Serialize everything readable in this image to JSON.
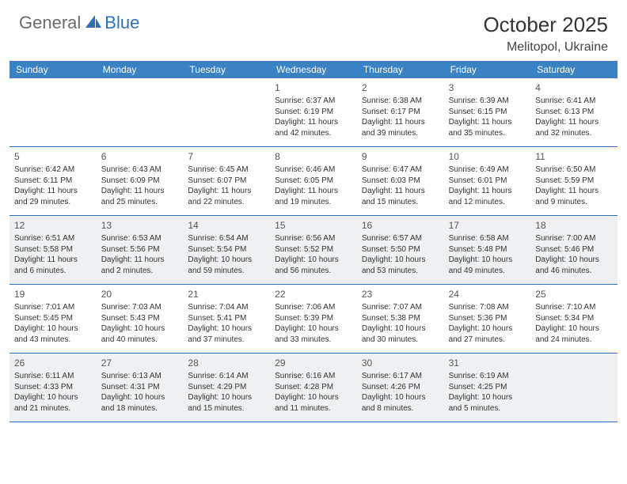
{
  "logo": {
    "general": "General",
    "blue": "Blue"
  },
  "title": "October 2025",
  "location": "Melitopol, Ukraine",
  "colors": {
    "header_bg": "#3b82c4",
    "border": "#2d6fb8",
    "shaded": "#eef0f2",
    "logo_gray": "#6b6b6b",
    "logo_blue": "#2d6fb8"
  },
  "day_names": [
    "Sunday",
    "Monday",
    "Tuesday",
    "Wednesday",
    "Thursday",
    "Friday",
    "Saturday"
  ],
  "weeks": [
    {
      "shaded": false,
      "days": [
        {
          "num": "",
          "sunrise": "",
          "sunset": "",
          "daylight": ""
        },
        {
          "num": "",
          "sunrise": "",
          "sunset": "",
          "daylight": ""
        },
        {
          "num": "",
          "sunrise": "",
          "sunset": "",
          "daylight": ""
        },
        {
          "num": "1",
          "sunrise": "Sunrise: 6:37 AM",
          "sunset": "Sunset: 6:19 PM",
          "daylight": "Daylight: 11 hours and 42 minutes."
        },
        {
          "num": "2",
          "sunrise": "Sunrise: 6:38 AM",
          "sunset": "Sunset: 6:17 PM",
          "daylight": "Daylight: 11 hours and 39 minutes."
        },
        {
          "num": "3",
          "sunrise": "Sunrise: 6:39 AM",
          "sunset": "Sunset: 6:15 PM",
          "daylight": "Daylight: 11 hours and 35 minutes."
        },
        {
          "num": "4",
          "sunrise": "Sunrise: 6:41 AM",
          "sunset": "Sunset: 6:13 PM",
          "daylight": "Daylight: 11 hours and 32 minutes."
        }
      ]
    },
    {
      "shaded": false,
      "days": [
        {
          "num": "5",
          "sunrise": "Sunrise: 6:42 AM",
          "sunset": "Sunset: 6:11 PM",
          "daylight": "Daylight: 11 hours and 29 minutes."
        },
        {
          "num": "6",
          "sunrise": "Sunrise: 6:43 AM",
          "sunset": "Sunset: 6:09 PM",
          "daylight": "Daylight: 11 hours and 25 minutes."
        },
        {
          "num": "7",
          "sunrise": "Sunrise: 6:45 AM",
          "sunset": "Sunset: 6:07 PM",
          "daylight": "Daylight: 11 hours and 22 minutes."
        },
        {
          "num": "8",
          "sunrise": "Sunrise: 6:46 AM",
          "sunset": "Sunset: 6:05 PM",
          "daylight": "Daylight: 11 hours and 19 minutes."
        },
        {
          "num": "9",
          "sunrise": "Sunrise: 6:47 AM",
          "sunset": "Sunset: 6:03 PM",
          "daylight": "Daylight: 11 hours and 15 minutes."
        },
        {
          "num": "10",
          "sunrise": "Sunrise: 6:49 AM",
          "sunset": "Sunset: 6:01 PM",
          "daylight": "Daylight: 11 hours and 12 minutes."
        },
        {
          "num": "11",
          "sunrise": "Sunrise: 6:50 AM",
          "sunset": "Sunset: 5:59 PM",
          "daylight": "Daylight: 11 hours and 9 minutes."
        }
      ]
    },
    {
      "shaded": true,
      "days": [
        {
          "num": "12",
          "sunrise": "Sunrise: 6:51 AM",
          "sunset": "Sunset: 5:58 PM",
          "daylight": "Daylight: 11 hours and 6 minutes."
        },
        {
          "num": "13",
          "sunrise": "Sunrise: 6:53 AM",
          "sunset": "Sunset: 5:56 PM",
          "daylight": "Daylight: 11 hours and 2 minutes."
        },
        {
          "num": "14",
          "sunrise": "Sunrise: 6:54 AM",
          "sunset": "Sunset: 5:54 PM",
          "daylight": "Daylight: 10 hours and 59 minutes."
        },
        {
          "num": "15",
          "sunrise": "Sunrise: 6:56 AM",
          "sunset": "Sunset: 5:52 PM",
          "daylight": "Daylight: 10 hours and 56 minutes."
        },
        {
          "num": "16",
          "sunrise": "Sunrise: 6:57 AM",
          "sunset": "Sunset: 5:50 PM",
          "daylight": "Daylight: 10 hours and 53 minutes."
        },
        {
          "num": "17",
          "sunrise": "Sunrise: 6:58 AM",
          "sunset": "Sunset: 5:48 PM",
          "daylight": "Daylight: 10 hours and 49 minutes."
        },
        {
          "num": "18",
          "sunrise": "Sunrise: 7:00 AM",
          "sunset": "Sunset: 5:46 PM",
          "daylight": "Daylight: 10 hours and 46 minutes."
        }
      ]
    },
    {
      "shaded": false,
      "days": [
        {
          "num": "19",
          "sunrise": "Sunrise: 7:01 AM",
          "sunset": "Sunset: 5:45 PM",
          "daylight": "Daylight: 10 hours and 43 minutes."
        },
        {
          "num": "20",
          "sunrise": "Sunrise: 7:03 AM",
          "sunset": "Sunset: 5:43 PM",
          "daylight": "Daylight: 10 hours and 40 minutes."
        },
        {
          "num": "21",
          "sunrise": "Sunrise: 7:04 AM",
          "sunset": "Sunset: 5:41 PM",
          "daylight": "Daylight: 10 hours and 37 minutes."
        },
        {
          "num": "22",
          "sunrise": "Sunrise: 7:06 AM",
          "sunset": "Sunset: 5:39 PM",
          "daylight": "Daylight: 10 hours and 33 minutes."
        },
        {
          "num": "23",
          "sunrise": "Sunrise: 7:07 AM",
          "sunset": "Sunset: 5:38 PM",
          "daylight": "Daylight: 10 hours and 30 minutes."
        },
        {
          "num": "24",
          "sunrise": "Sunrise: 7:08 AM",
          "sunset": "Sunset: 5:36 PM",
          "daylight": "Daylight: 10 hours and 27 minutes."
        },
        {
          "num": "25",
          "sunrise": "Sunrise: 7:10 AM",
          "sunset": "Sunset: 5:34 PM",
          "daylight": "Daylight: 10 hours and 24 minutes."
        }
      ]
    },
    {
      "shaded": true,
      "days": [
        {
          "num": "26",
          "sunrise": "Sunrise: 6:11 AM",
          "sunset": "Sunset: 4:33 PM",
          "daylight": "Daylight: 10 hours and 21 minutes."
        },
        {
          "num": "27",
          "sunrise": "Sunrise: 6:13 AM",
          "sunset": "Sunset: 4:31 PM",
          "daylight": "Daylight: 10 hours and 18 minutes."
        },
        {
          "num": "28",
          "sunrise": "Sunrise: 6:14 AM",
          "sunset": "Sunset: 4:29 PM",
          "daylight": "Daylight: 10 hours and 15 minutes."
        },
        {
          "num": "29",
          "sunrise": "Sunrise: 6:16 AM",
          "sunset": "Sunset: 4:28 PM",
          "daylight": "Daylight: 10 hours and 11 minutes."
        },
        {
          "num": "30",
          "sunrise": "Sunrise: 6:17 AM",
          "sunset": "Sunset: 4:26 PM",
          "daylight": "Daylight: 10 hours and 8 minutes."
        },
        {
          "num": "31",
          "sunrise": "Sunrise: 6:19 AM",
          "sunset": "Sunset: 4:25 PM",
          "daylight": "Daylight: 10 hours and 5 minutes."
        },
        {
          "num": "",
          "sunrise": "",
          "sunset": "",
          "daylight": ""
        }
      ]
    }
  ]
}
